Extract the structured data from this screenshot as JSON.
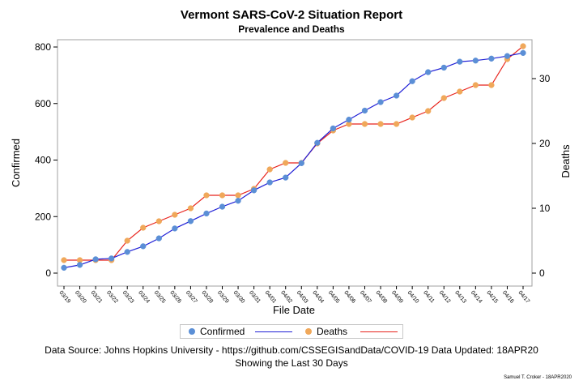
{
  "title": "Vermont SARS-CoV-2 Situation Report",
  "subtitle": "Prevalence and Deaths",
  "footnotes": {
    "line1": "Data Source: Johns Hopkins University - https://github.com/CSSEGISandData/COVID-19 Data Updated: 18APR20",
    "line2": "Showing the Last 30 Days",
    "author": "Samuel T. Croker - 18APR2020"
  },
  "legend": {
    "confirmed_label": "Confirmed",
    "deaths_label": "Deaths"
  },
  "colors": {
    "confirmed_line": "#1f1fd6",
    "confirmed_marker": "#5b8fd6",
    "deaths_line": "#e8231c",
    "deaths_marker": "#f0a85a",
    "frame": "#a0a0a0"
  },
  "chart_data": {
    "type": "line",
    "title": "Vermont SARS-CoV-2 Situation Report",
    "subtitle": "Prevalence and Deaths",
    "xlabel": "File Date",
    "ylabel": "Confirmed",
    "y2label": "Deaths",
    "ylim": [
      0,
      800
    ],
    "y2lim": [
      0,
      30
    ],
    "yticks": [
      0,
      200,
      400,
      600,
      800
    ],
    "y2ticks": [
      0,
      10,
      20,
      30
    ],
    "categories": [
      "03/19",
      "03/20",
      "03/21",
      "03/22",
      "03/23",
      "03/24",
      "03/25",
      "03/26",
      "03/27",
      "03/28",
      "03/29",
      "03/30",
      "03/31",
      "04/01",
      "04/02",
      "04/03",
      "04/04",
      "04/05",
      "04/06",
      "04/07",
      "04/08",
      "04/09",
      "04/10",
      "04/11",
      "04/12",
      "04/13",
      "04/14",
      "04/15",
      "04/16",
      "04/17"
    ],
    "series": [
      {
        "name": "Confirmed",
        "axis": "left",
        "values": [
          19,
          29,
          49,
          52,
          75,
          95,
          123,
          158,
          184,
          211,
          235,
          256,
          293,
          321,
          338,
          389,
          461,
          512,
          543,
          575,
          605,
          628,
          679,
          711,
          727,
          748,
          752,
          759,
          768,
          779
        ]
      },
      {
        "name": "Deaths",
        "axis": "right",
        "values": [
          2,
          2,
          2,
          2,
          5,
          7,
          8,
          9,
          10,
          12,
          12,
          12,
          13,
          16,
          17,
          17,
          20,
          22,
          23,
          23,
          23,
          23,
          24,
          25,
          27,
          28,
          29,
          29,
          33,
          35
        ]
      }
    ],
    "grid": false,
    "legend_position": "bottom-center"
  }
}
